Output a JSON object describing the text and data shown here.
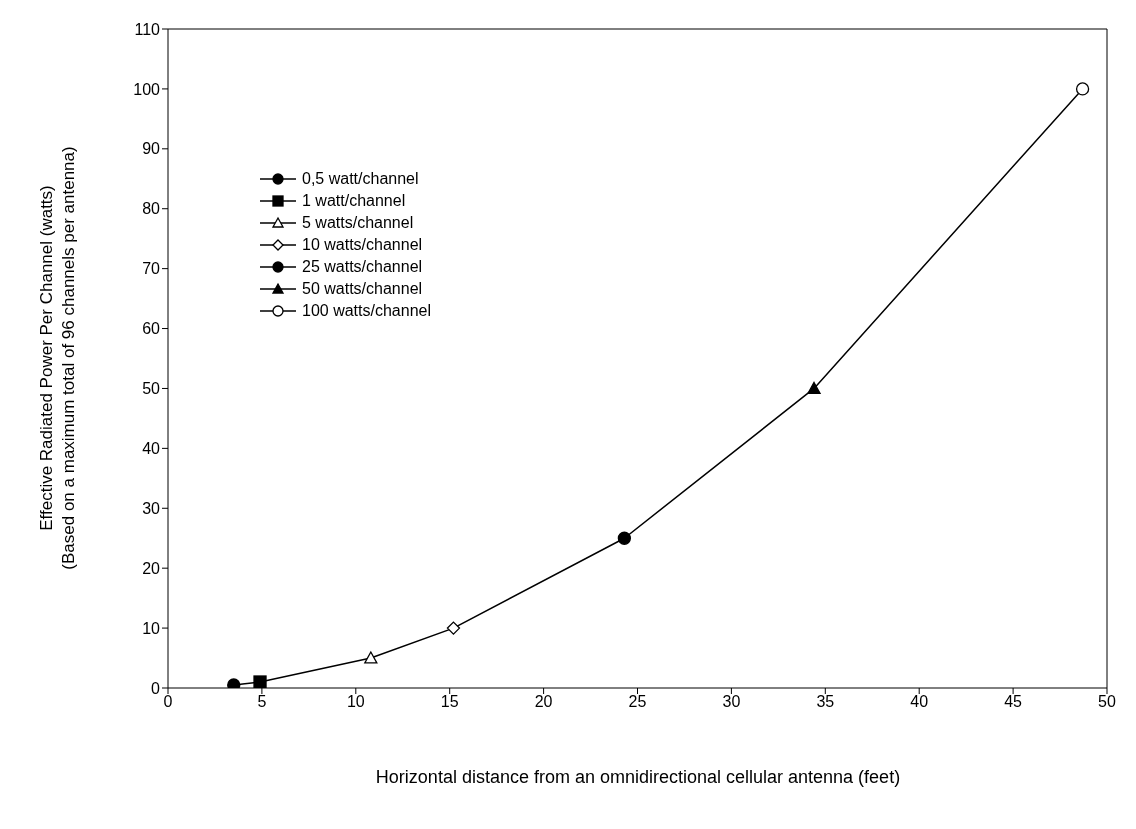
{
  "chart_data": {
    "type": "line",
    "xlabel": "Horizontal distance from an omnidirectional cellular antenna (feet)",
    "ylabel": "Effective Radiated Power Per Channel (watts)\n(Based on a maximum total of 96 channels per antenna)",
    "xlim": [
      0,
      50
    ],
    "xticks": [
      0,
      5,
      10,
      15,
      20,
      25,
      30,
      35,
      40,
      45,
      50
    ],
    "ylim": [
      0,
      110
    ],
    "yticks": [
      0,
      10,
      20,
      30,
      40,
      50,
      60,
      70,
      80,
      90,
      100,
      110
    ],
    "legend": "top left",
    "series": [
      {
        "type": "line",
        "color": "#000000",
        "marker": "none",
        "x": [
          3.5,
          4.9,
          10.8,
          15.2,
          24.3,
          34.4,
          48.7
        ],
        "values": [
          0.5,
          1,
          5,
          10,
          25,
          50,
          100
        ]
      },
      {
        "name": "0,5 watt/channel",
        "type": "scatter",
        "marker": "circle",
        "color": "#000000",
        "x": [
          3.5
        ],
        "values": [
          0.5
        ]
      },
      {
        "name": "1 watt/channel",
        "type": "scatter",
        "marker": "square",
        "color": "#000000",
        "x": [
          4.9
        ],
        "values": [
          1
        ]
      },
      {
        "name": "5 watts/channel",
        "type": "scatter",
        "marker": "triangle",
        "color": "#ffffff",
        "x": [
          10.8
        ],
        "values": [
          5
        ]
      },
      {
        "name": "10 watts/channel",
        "type": "scatter",
        "marker": "diamond",
        "color": "#ffffff",
        "x": [
          15.2
        ],
        "values": [
          10
        ]
      },
      {
        "name": "25 watts/channel",
        "type": "scatter",
        "marker": "circle",
        "color": "#000000",
        "x": [
          24.3
        ],
        "values": [
          25
        ]
      },
      {
        "name": "50 watts/channel",
        "type": "scatter",
        "marker": "triangle",
        "color": "#000000",
        "x": [
          34.4
        ],
        "values": [
          50
        ]
      },
      {
        "name": "100 watts/channel",
        "type": "scatter",
        "marker": "circle",
        "color": "#ffffff",
        "x": [
          48.7
        ],
        "values": [
          100
        ]
      }
    ]
  }
}
